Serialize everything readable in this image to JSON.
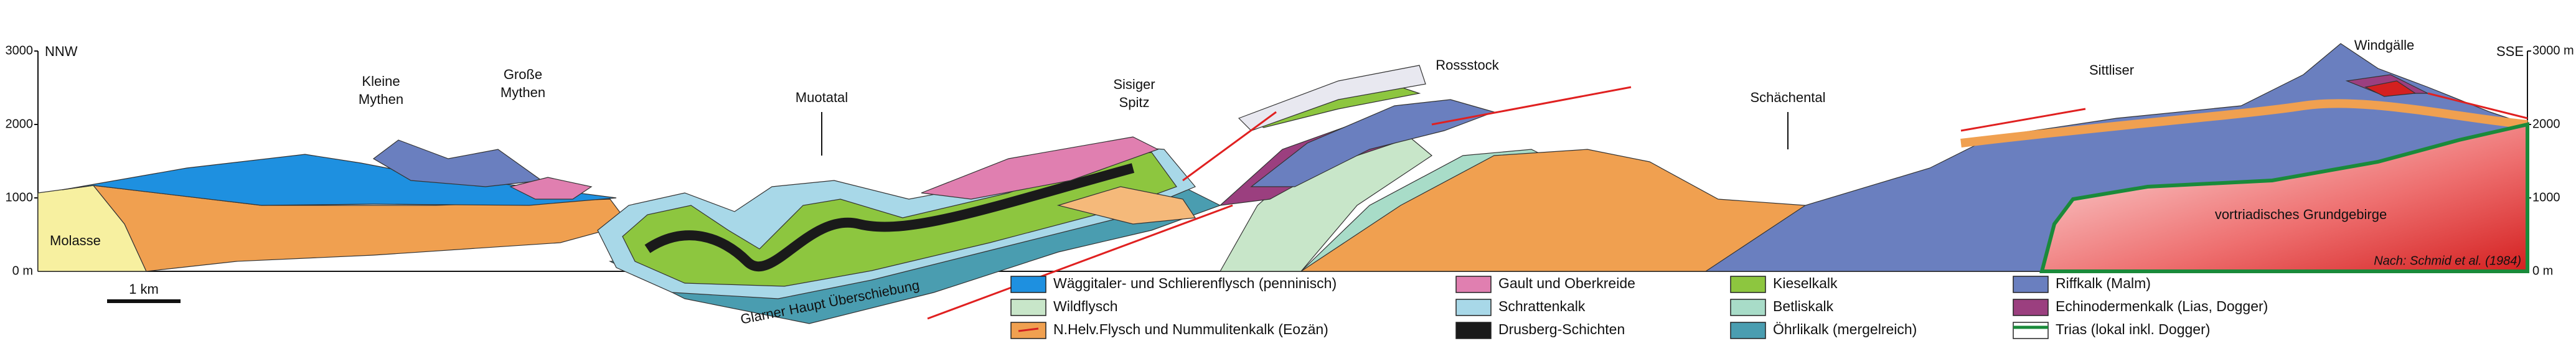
{
  "axis": {
    "left_label": "NNW",
    "right_label": "SSE",
    "left_ticks": [
      "3000",
      "2000",
      "1000",
      "0 m"
    ],
    "right_ticks": [
      "3000 m",
      "2000",
      "1000",
      "0 m"
    ]
  },
  "places": [
    {
      "lines": [
        "Kleine",
        "Mythen"
      ]
    },
    {
      "lines": [
        "Große",
        "Mythen"
      ]
    },
    {
      "lines": [
        "Muotatal"
      ]
    },
    {
      "lines": [
        "Sisiger",
        "Spitz"
      ]
    },
    {
      "lines": [
        "Rossstock"
      ]
    },
    {
      "lines": [
        "Schächental"
      ]
    },
    {
      "lines": [
        "Sittliser"
      ]
    },
    {
      "lines": [
        "Windgälle"
      ]
    }
  ],
  "units": {
    "molasse": "Molasse",
    "basement": "vortriadisches Grundgebirge"
  },
  "thrust": "Glarner Haupt Überschiebung",
  "scale_bar": "1 km",
  "credit": "Nach: Schmid et al. (1984)",
  "legend": [
    "Wäggitaler- und Schlierenflysch (penninisch)",
    "Wildflysch",
    "N.Helv.Flysch und Nummulitenkalk (Eozän)",
    "Gault und Oberkreide",
    "Schrattenkalk",
    "Drusberg-Schichten",
    "Kieselkalk",
    "Betliskalk",
    "Öhrlikalk (mergelreich)",
    "Riffkalk (Malm)",
    "Echinodermenkalk (Lias, Dogger)",
    "Trias (lokal inkl. Dogger)"
  ]
}
